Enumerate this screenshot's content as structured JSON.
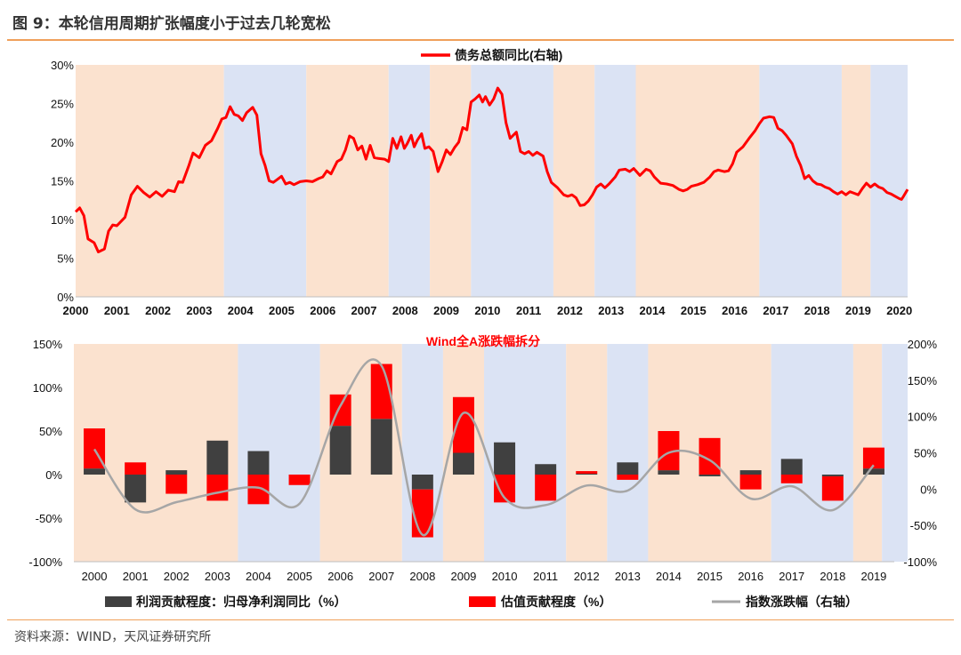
{
  "figure": {
    "title": "图 9：本轮信用周期扩张幅度小于过去几轮宽松",
    "source": "资料来源：WIND，天风证券研究所"
  },
  "colors": {
    "peach": "#fbe2cf",
    "blue": "#dbe3f4",
    "red": "#ff0000",
    "dark": "#404040",
    "gray": "#a6a6a6",
    "accent": "#f0a05a"
  },
  "chart_data": [
    {
      "type": "line",
      "legend": "债务总额同比(右轴)",
      "x_labels": [
        "2000",
        "2001",
        "2002",
        "2003",
        "2004",
        "2005",
        "2006",
        "2007",
        "2008",
        "2009",
        "2010",
        "2011",
        "2012",
        "2013",
        "2014",
        "2015",
        "2016",
        "2017",
        "2018",
        "2019",
        "2020"
      ],
      "y_ticks": [
        "0%",
        "5%",
        "10%",
        "15%",
        "20%",
        "25%",
        "30%"
      ],
      "ylim": [
        0,
        30
      ],
      "x_range": [
        2000.0,
        2020.2
      ],
      "background_bands": [
        {
          "from": 2000.0,
          "to": 2003.6,
          "shade": "peach"
        },
        {
          "from": 2003.6,
          "to": 2005.6,
          "shade": "blue"
        },
        {
          "from": 2005.6,
          "to": 2007.6,
          "shade": "peach"
        },
        {
          "from": 2007.6,
          "to": 2008.6,
          "shade": "blue"
        },
        {
          "from": 2008.6,
          "to": 2009.6,
          "shade": "peach"
        },
        {
          "from": 2009.6,
          "to": 2011.6,
          "shade": "blue"
        },
        {
          "from": 2011.6,
          "to": 2012.6,
          "shade": "peach"
        },
        {
          "from": 2012.6,
          "to": 2013.6,
          "shade": "blue"
        },
        {
          "from": 2013.6,
          "to": 2016.6,
          "shade": "peach"
        },
        {
          "from": 2016.6,
          "to": 2018.6,
          "shade": "blue"
        },
        {
          "from": 2018.6,
          "to": 2019.3,
          "shade": "peach"
        },
        {
          "from": 2019.3,
          "to": 2020.2,
          "shade": "blue"
        }
      ],
      "series": [
        {
          "name": "债务总额同比(右轴)",
          "points": [
            [
              2000.0,
              11.0
            ],
            [
              2000.1,
              11.5
            ],
            [
              2000.2,
              10.5
            ],
            [
              2000.3,
              7.5
            ],
            [
              2000.45,
              7.0
            ],
            [
              2000.55,
              5.8
            ],
            [
              2000.7,
              6.2
            ],
            [
              2000.8,
              8.5
            ],
            [
              2000.9,
              9.3
            ],
            [
              2001.0,
              9.2
            ],
            [
              2001.2,
              10.3
            ],
            [
              2001.35,
              13.2
            ],
            [
              2001.5,
              14.3
            ],
            [
              2001.65,
              13.5
            ],
            [
              2001.8,
              12.9
            ],
            [
              2001.95,
              13.6
            ],
            [
              2002.1,
              13.0
            ],
            [
              2002.25,
              13.8
            ],
            [
              2002.4,
              13.6
            ],
            [
              2002.5,
              14.9
            ],
            [
              2002.6,
              14.8
            ],
            [
              2002.75,
              17.0
            ],
            [
              2002.85,
              18.6
            ],
            [
              2003.0,
              18.0
            ],
            [
              2003.15,
              19.6
            ],
            [
              2003.3,
              20.2
            ],
            [
              2003.45,
              21.8
            ],
            [
              2003.55,
              23.0
            ],
            [
              2003.65,
              23.2
            ],
            [
              2003.75,
              24.6
            ],
            [
              2003.85,
              23.6
            ],
            [
              2003.95,
              23.4
            ],
            [
              2004.05,
              22.8
            ],
            [
              2004.15,
              23.8
            ],
            [
              2004.3,
              24.5
            ],
            [
              2004.4,
              23.5
            ],
            [
              2004.5,
              18.5
            ],
            [
              2004.6,
              17.0
            ],
            [
              2004.7,
              15.0
            ],
            [
              2004.8,
              14.8
            ],
            [
              2004.9,
              15.2
            ],
            [
              2005.0,
              15.6
            ],
            [
              2005.1,
              14.6
            ],
            [
              2005.2,
              14.8
            ],
            [
              2005.3,
              14.5
            ],
            [
              2005.45,
              14.9
            ],
            [
              2005.6,
              15.0
            ],
            [
              2005.75,
              14.9
            ],
            [
              2005.9,
              15.3
            ],
            [
              2006.0,
              15.5
            ],
            [
              2006.1,
              16.3
            ],
            [
              2006.2,
              15.9
            ],
            [
              2006.35,
              17.5
            ],
            [
              2006.45,
              17.8
            ],
            [
              2006.55,
              19.0
            ],
            [
              2006.65,
              20.8
            ],
            [
              2006.75,
              20.5
            ],
            [
              2006.85,
              19.0
            ],
            [
              2006.95,
              19.5
            ],
            [
              2007.05,
              17.8
            ],
            [
              2007.15,
              19.6
            ],
            [
              2007.25,
              18.0
            ],
            [
              2007.35,
              17.9
            ],
            [
              2007.5,
              17.8
            ],
            [
              2007.6,
              17.5
            ],
            [
              2007.7,
              20.5
            ],
            [
              2007.8,
              19.2
            ],
            [
              2007.9,
              20.7
            ],
            [
              2007.98,
              19.2
            ],
            [
              2008.05,
              19.8
            ],
            [
              2008.15,
              20.9
            ],
            [
              2008.22,
              19.4
            ],
            [
              2008.3,
              20.3
            ],
            [
              2008.4,
              21.1
            ],
            [
              2008.48,
              19.2
            ],
            [
              2008.58,
              19.4
            ],
            [
              2008.68,
              18.8
            ],
            [
              2008.8,
              16.2
            ],
            [
              2008.9,
              17.5
            ],
            [
              2009.0,
              19.0
            ],
            [
              2009.1,
              18.4
            ],
            [
              2009.2,
              19.3
            ],
            [
              2009.3,
              20.0
            ],
            [
              2009.4,
              21.9
            ],
            [
              2009.5,
              21.6
            ],
            [
              2009.6,
              25.2
            ],
            [
              2009.7,
              25.6
            ],
            [
              2009.8,
              26.1
            ],
            [
              2009.88,
              25.2
            ],
            [
              2009.95,
              25.9
            ],
            [
              2010.05,
              24.8
            ],
            [
              2010.15,
              25.6
            ],
            [
              2010.25,
              27.0
            ],
            [
              2010.35,
              26.2
            ],
            [
              2010.45,
              22.5
            ],
            [
              2010.55,
              20.5
            ],
            [
              2010.7,
              21.3
            ],
            [
              2010.8,
              18.8
            ],
            [
              2010.9,
              18.5
            ],
            [
              2011.0,
              18.8
            ],
            [
              2011.1,
              18.3
            ],
            [
              2011.2,
              18.7
            ],
            [
              2011.35,
              18.2
            ],
            [
              2011.45,
              16.2
            ],
            [
              2011.55,
              14.8
            ],
            [
              2011.7,
              14.1
            ],
            [
              2011.85,
              13.2
            ],
            [
              2011.95,
              13.0
            ],
            [
              2012.05,
              13.2
            ],
            [
              2012.15,
              12.8
            ],
            [
              2012.25,
              11.8
            ],
            [
              2012.35,
              11.9
            ],
            [
              2012.45,
              12.4
            ],
            [
              2012.55,
              13.2
            ],
            [
              2012.65,
              14.2
            ],
            [
              2012.75,
              14.6
            ],
            [
              2012.85,
              14.1
            ],
            [
              2012.95,
              14.6
            ],
            [
              2013.1,
              15.5
            ],
            [
              2013.2,
              16.4
            ],
            [
              2013.35,
              16.5
            ],
            [
              2013.45,
              16.2
            ],
            [
              2013.55,
              16.6
            ],
            [
              2013.7,
              15.7
            ],
            [
              2013.85,
              16.5
            ],
            [
              2013.95,
              16.3
            ],
            [
              2014.05,
              15.5
            ],
            [
              2014.2,
              14.7
            ],
            [
              2014.35,
              14.6
            ],
            [
              2014.5,
              14.4
            ],
            [
              2014.65,
              13.9
            ],
            [
              2014.75,
              13.7
            ],
            [
              2014.85,
              13.9
            ],
            [
              2014.95,
              14.3
            ],
            [
              2015.1,
              14.5
            ],
            [
              2015.25,
              14.8
            ],
            [
              2015.4,
              15.5
            ],
            [
              2015.5,
              16.2
            ],
            [
              2015.6,
              16.4
            ],
            [
              2015.75,
              16.2
            ],
            [
              2015.85,
              16.3
            ],
            [
              2015.95,
              17.2
            ],
            [
              2016.05,
              18.7
            ],
            [
              2016.2,
              19.4
            ],
            [
              2016.35,
              20.5
            ],
            [
              2016.5,
              21.5
            ],
            [
              2016.6,
              22.4
            ],
            [
              2016.7,
              23.1
            ],
            [
              2016.85,
              23.3
            ],
            [
              2016.95,
              23.2
            ],
            [
              2017.05,
              21.8
            ],
            [
              2017.15,
              21.5
            ],
            [
              2017.25,
              20.9
            ],
            [
              2017.4,
              19.8
            ],
            [
              2017.5,
              18.2
            ],
            [
              2017.6,
              17.0
            ],
            [
              2017.7,
              15.3
            ],
            [
              2017.8,
              15.7
            ],
            [
              2017.9,
              15.0
            ],
            [
              2018.0,
              14.6
            ],
            [
              2018.1,
              14.5
            ],
            [
              2018.2,
              14.2
            ],
            [
              2018.3,
              14.0
            ],
            [
              2018.4,
              13.6
            ],
            [
              2018.5,
              13.3
            ],
            [
              2018.6,
              13.6
            ],
            [
              2018.7,
              13.2
            ],
            [
              2018.8,
              13.6
            ],
            [
              2018.9,
              13.4
            ],
            [
              2019.0,
              13.2
            ],
            [
              2019.1,
              14.0
            ],
            [
              2019.2,
              14.7
            ],
            [
              2019.3,
              14.2
            ],
            [
              2019.4,
              14.6
            ],
            [
              2019.5,
              14.2
            ],
            [
              2019.6,
              14.0
            ],
            [
              2019.7,
              13.5
            ],
            [
              2019.8,
              13.3
            ],
            [
              2019.9,
              13.0
            ],
            [
              2020.0,
              12.7
            ],
            [
              2020.05,
              12.6
            ],
            [
              2020.1,
              13.0
            ],
            [
              2020.2,
              13.9
            ]
          ]
        }
      ]
    },
    {
      "type": "bar+line",
      "title": "Wind全A涨跌幅拆分",
      "categories": [
        "2000",
        "2001",
        "2002",
        "2003",
        "2004",
        "2005",
        "2006",
        "2007",
        "2008",
        "2009",
        "2010",
        "2011",
        "2012",
        "2013",
        "2014",
        "2015",
        "2016",
        "2017",
        "2018",
        "2019"
      ],
      "left_ticks": [
        "150%",
        "100%",
        "50%",
        "0%",
        "-50%",
        "-100%"
      ],
      "left_ylim": [
        -100,
        150
      ],
      "right_ticks": [
        "200%",
        "150%",
        "100%",
        "50%",
        "0%",
        "-50%",
        "-100%"
      ],
      "right_ylim": [
        -100,
        200
      ],
      "background_bands": [
        {
          "from": 0,
          "to": 4,
          "shade": "peach"
        },
        {
          "from": 4,
          "to": 6,
          "shade": "blue"
        },
        {
          "from": 6,
          "to": 8,
          "shade": "peach"
        },
        {
          "from": 8,
          "to": 9,
          "shade": "blue"
        },
        {
          "from": 9,
          "to": 10,
          "shade": "peach"
        },
        {
          "from": 10,
          "to": 12,
          "shade": "blue"
        },
        {
          "from": 12,
          "to": 13,
          "shade": "peach"
        },
        {
          "from": 13,
          "to": 14,
          "shade": "blue"
        },
        {
          "from": 14,
          "to": 17,
          "shade": "peach"
        },
        {
          "from": 17,
          "to": 19,
          "shade": "blue"
        },
        {
          "from": 19,
          "to": 19.7,
          "shade": "peach"
        },
        {
          "from": 19.7,
          "to": 20.5,
          "shade": "blue"
        }
      ],
      "series": [
        {
          "name": "利润贡献程度：归母净利润同比（%）",
          "kind": "bar",
          "values": [
            7,
            -32,
            5,
            39,
            27,
            0,
            56,
            64,
            -17,
            25,
            37,
            12,
            1,
            14,
            5,
            -2,
            5,
            18,
            -2,
            7
          ]
        },
        {
          "name": "估值贡献程度（%）",
          "kind": "bar",
          "values": [
            46,
            14,
            -22,
            -30,
            -34,
            -12,
            36,
            63,
            -55,
            64,
            -32,
            -30,
            3,
            -6,
            45,
            42,
            -17,
            -10,
            -28,
            24
          ]
        },
        {
          "name": "指数涨跌幅（右轴）",
          "kind": "line",
          "axis": "right",
          "values": [
            55,
            -28,
            -18,
            -5,
            2,
            -20,
            115,
            170,
            -63,
            105,
            -12,
            -22,
            5,
            -2,
            50,
            40,
            -13,
            4,
            -29,
            33
          ]
        }
      ]
    }
  ]
}
